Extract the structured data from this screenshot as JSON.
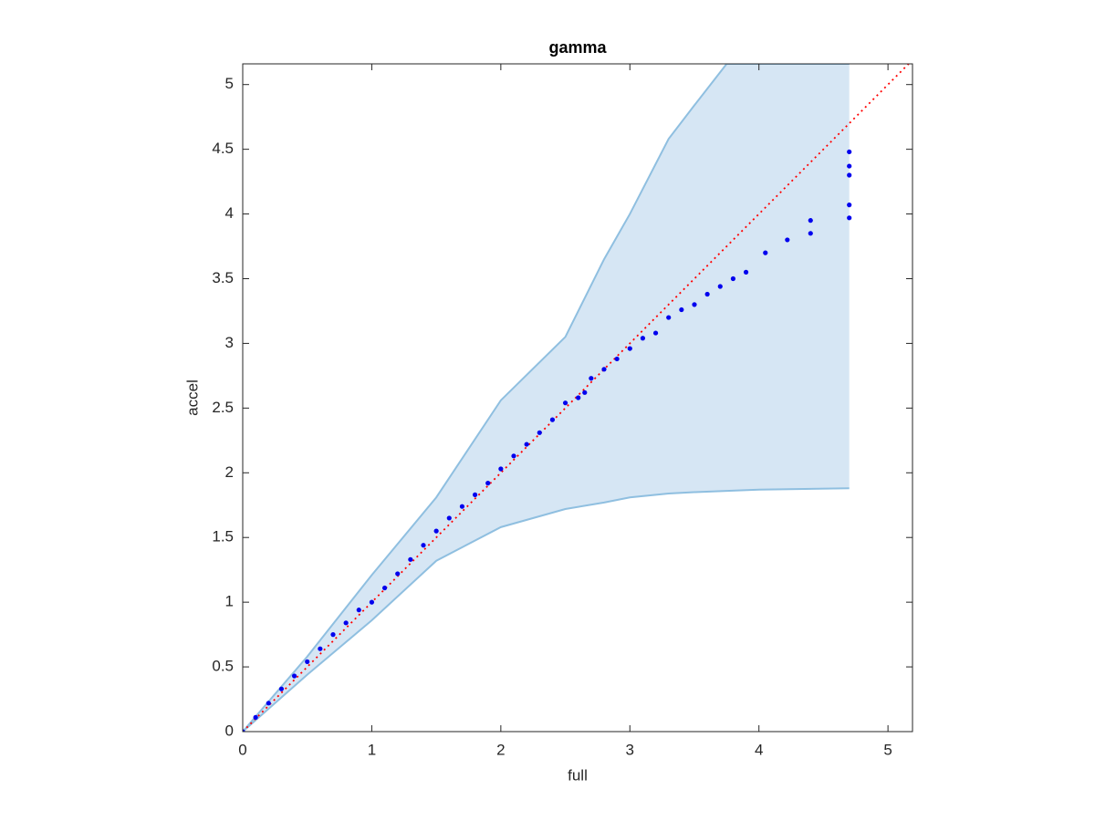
{
  "chart_data": {
    "type": "scatter",
    "title": "gamma",
    "x_label": "full",
    "y_label": "accel",
    "xlim": [
      0,
      5.19
    ],
    "ylim": [
      0,
      5.16
    ],
    "xticks": [
      0,
      1,
      2,
      3,
      4,
      5
    ],
    "yticks": [
      0,
      0.5,
      1,
      1.5,
      2,
      2.5,
      3,
      3.5,
      4,
      4.5,
      5
    ],
    "band": {
      "color": "#d6e6f4",
      "edge_color": "#8fbfe0",
      "x": [
        0,
        0.5,
        1,
        1.5,
        2,
        2.5,
        2.8,
        3,
        3.3,
        3.5,
        3.75,
        4,
        4.7
      ],
      "upper": [
        0,
        0.58,
        1.21,
        1.81,
        2.56,
        3.05,
        3.65,
        4.0,
        4.58,
        4.84,
        5.16,
        5.16,
        5.16
      ],
      "lower": [
        0,
        0.44,
        0.86,
        1.32,
        1.58,
        1.72,
        1.77,
        1.81,
        1.84,
        1.85,
        1.86,
        1.87,
        1.88
      ]
    },
    "reference_line": {
      "color": "#ff0000",
      "x": [
        0,
        5.19
      ],
      "values": [
        0,
        5.19
      ]
    },
    "points": {
      "color": "#0000ee",
      "x": [
        0,
        0.1,
        0.2,
        0.3,
        0.4,
        0.5,
        0.6,
        0.7,
        0.8,
        0.9,
        1,
        1.1,
        1.2,
        1.3,
        1.4,
        1.5,
        1.6,
        1.7,
        1.8,
        1.9,
        2,
        2.1,
        2.2,
        2.3,
        2.4,
        2.5,
        2.6,
        2.65,
        2.7,
        2.8,
        2.9,
        3.0,
        3.1,
        3.2,
        3.3,
        3.4,
        3.5,
        3.6,
        3.7,
        3.8,
        3.9,
        4.05,
        4.22,
        4.4,
        4.4,
        4.7,
        4.7,
        4.7,
        4.7,
        4.7
      ],
      "values": [
        0,
        0.11,
        0.22,
        0.33,
        0.43,
        0.54,
        0.64,
        0.75,
        0.84,
        0.94,
        1.0,
        1.11,
        1.22,
        1.33,
        1.44,
        1.55,
        1.65,
        1.74,
        1.83,
        1.92,
        2.03,
        2.13,
        2.22,
        2.31,
        2.41,
        2.54,
        2.58,
        2.62,
        2.73,
        2.8,
        2.88,
        2.96,
        3.04,
        3.08,
        3.2,
        3.26,
        3.3,
        3.38,
        3.44,
        3.5,
        3.55,
        3.7,
        3.8,
        3.85,
        3.95,
        3.97,
        4.07,
        4.3,
        4.37,
        4.48
      ]
    }
  }
}
